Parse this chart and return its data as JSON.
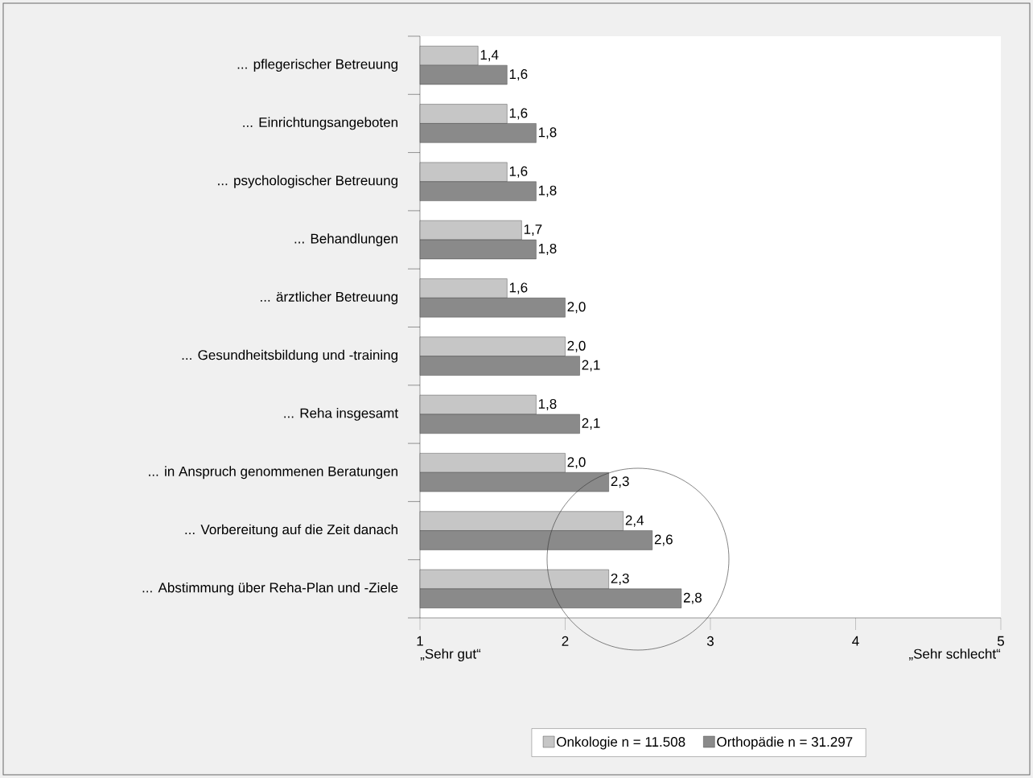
{
  "chart_data": {
    "type": "bar",
    "orientation": "horizontal",
    "categories": [
      "... pflegerischer Betreuung",
      "... Einrichtungsangeboten",
      "... psychologischer Betreuung",
      "... Behandlungen",
      "... ärztlicher Betreuung",
      "... Gesundheitsbildung und -training",
      "... Reha insgesamt",
      "... in Anspruch genommenen Beratungen",
      "... Vorbereitung auf die Zeit danach",
      "... Abstimmung über Reha-Plan und -Ziele"
    ],
    "series": [
      {
        "name": "Onkologie n = 11.508",
        "color": "#c6c6c6",
        "values": [
          1.4,
          1.6,
          1.6,
          1.7,
          1.6,
          2.0,
          1.8,
          2.0,
          2.4,
          2.3
        ],
        "value_labels": [
          "1,4",
          "1,6",
          "1,6",
          "1,7",
          "1,6",
          "2,0",
          "1,8",
          "2,0",
          "2,4",
          "2,3"
        ]
      },
      {
        "name": "Orthopädie n = 31.297",
        "color": "#8a8a8a",
        "values": [
          1.6,
          1.8,
          1.8,
          1.8,
          2.0,
          2.1,
          2.1,
          2.3,
          2.6,
          2.8
        ],
        "value_labels": [
          "1,6",
          "1,8",
          "1,8",
          "1,8",
          "2,0",
          "2,1",
          "2,1",
          "2,3",
          "2,6",
          "2,8"
        ]
      }
    ],
    "xlim": [
      1,
      5
    ],
    "xticks": [
      1,
      2,
      3,
      4,
      5
    ],
    "annotations": [
      "„Sehr gut“",
      "„Sehr schlecht“"
    ],
    "legend": "bottom",
    "grid": false
  }
}
